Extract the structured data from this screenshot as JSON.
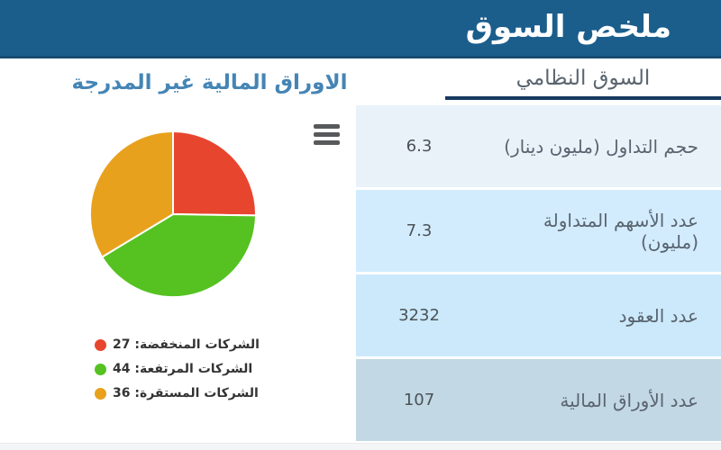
{
  "header": {
    "title": "ملخص السوق"
  },
  "left_panel": {
    "title": "الاوراق المالية غير المدرجة",
    "menu_icon": "hamburger-icon"
  },
  "chart_data": {
    "type": "pie",
    "title": "الاوراق المالية غير المدرجة",
    "labels": [
      "الشركات المنخفضة",
      "الشركات المرتفعة",
      "الشركات المستقرة"
    ],
    "values": [
      27,
      44,
      36
    ],
    "colors": [
      "#e8452f",
      "#55c221",
      "#e8a11c"
    ],
    "start_angle": 0,
    "legend_position": "bottom-left"
  },
  "right_panel": {
    "tab_label": "السوق النظامي",
    "table": {
      "rows": [
        {
          "label": "حجم التداول (مليون دينار)",
          "value": "6.3",
          "bg": "#e9f2f9"
        },
        {
          "label": "عدد الأسهم المتداولة (مليون)",
          "value": "7.3",
          "bg": "#d2ecfd"
        },
        {
          "label": "عدد العقود",
          "value": "3232",
          "bg": "#cbe9fb"
        },
        {
          "label": "عدد الأوراق المالية",
          "value": "107",
          "bg": "#c2d8e4"
        }
      ]
    }
  },
  "colors": {
    "header_bg": "#1b5e8c",
    "header_border": "#174d72",
    "tab_underline": "#16395f",
    "left_title": "#4585b5",
    "muted_text": "#5a6470"
  }
}
